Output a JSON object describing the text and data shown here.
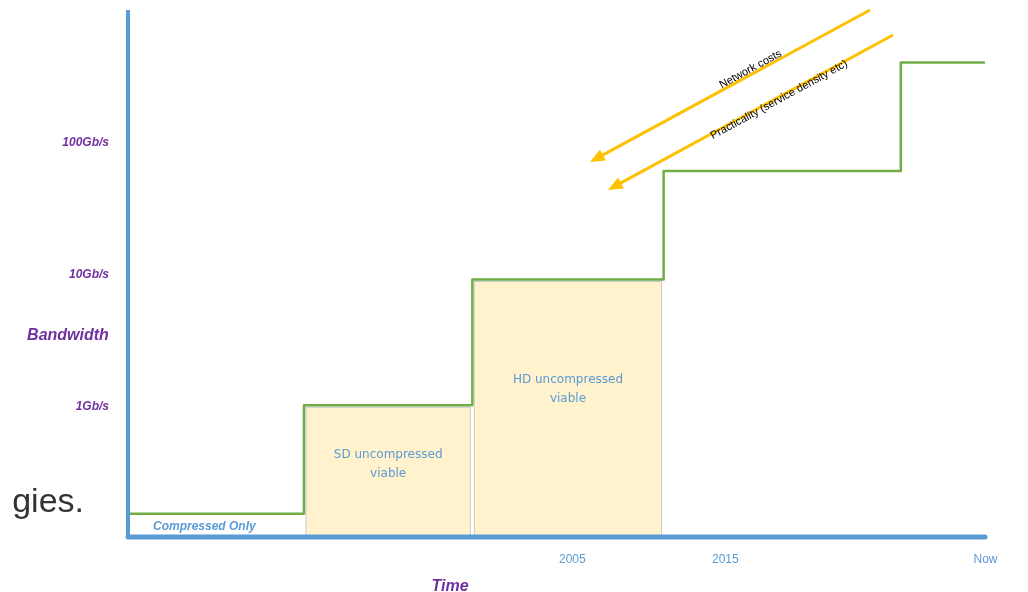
{
  "chart_data": {
    "type": "step",
    "xlabel": "Time",
    "ylabel": "Bandwidth",
    "log": "y",
    "x": [
      1976,
      1987.5,
      1998.5,
      2011,
      2026.5,
      2032
    ],
    "series": [
      {
        "color": "#70ad47",
        "values": [
          0.15,
          1,
          9,
          60,
          400,
          400
        ]
      }
    ],
    "xlim": [
      1976,
      2032
    ],
    "xticks": [
      2005,
      2015,
      {
        "value": 2032,
        "label": "Now"
      }
    ],
    "ylim": [
      0.1,
      1000
    ],
    "yticks": [
      {
        "value": 1,
        "label": "1Gb/s"
      },
      {
        "value": 10,
        "label": "10Gb/s"
      },
      {
        "value": 100,
        "label": "100Gb/s"
      }
    ],
    "bands": [
      {
        "axis": "x",
        "from": 1987.5,
        "to": 1998.5,
        "label": "SD uncompressed viable",
        "color": "#fff2cc"
      },
      {
        "axis": "x",
        "from": 1998.5,
        "to": 2011,
        "label": "HD uncompressed viable",
        "color": "#fff2cc"
      }
    ],
    "annotations": [
      "Compressed Only",
      "Network costs",
      "Practicality (service density etc)",
      "gies."
    ],
    "grid": false
  }
}
